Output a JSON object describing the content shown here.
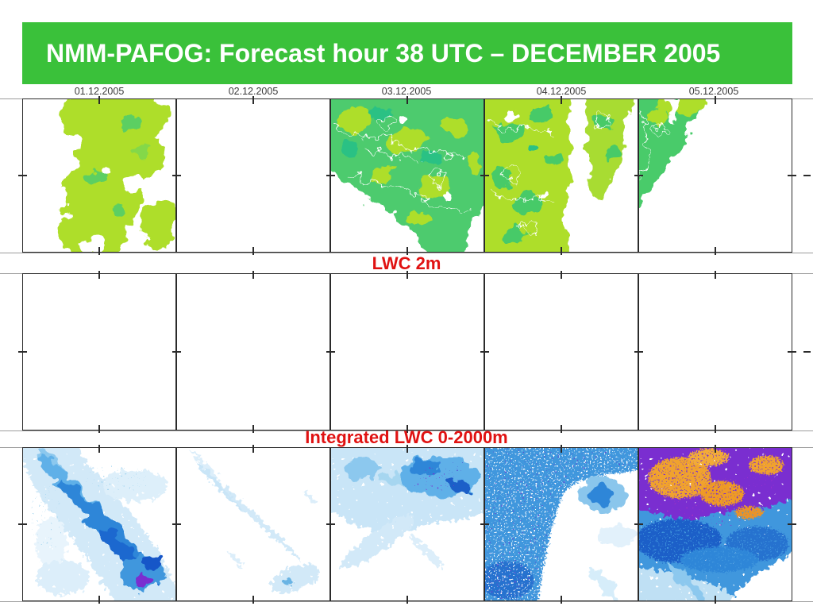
{
  "slide": {
    "title": "NMM-PAFOG: Forecast hour 38 UTC – DECEMBER 2005",
    "dates": [
      "01.12.2005",
      "02.12.2005",
      "03.12.2005",
      "04.12.2005",
      "05.12.2005"
    ],
    "rows": [
      {
        "name": "surface-fog-maps",
        "label": "",
        "panel_count": 5
      },
      {
        "name": "lwc-2m-maps",
        "label": "LWC 2m",
        "panel_count": 5
      },
      {
        "name": "integrated-lwc-maps",
        "label": "Integrated LWC 0-2000m",
        "panel_count": 5
      }
    ],
    "colors": {
      "banner_green": "#3ac13a",
      "label_red": "#e01212",
      "fog_yellow_green": "#aede2b",
      "fog_green": "#4ecb6e",
      "fog_deep_green": "#2cc184",
      "contour_white": "#ffffff",
      "lwc_pale_blue": "#cfe8f8",
      "lwc_mid_blue": "#5fb0e8",
      "lwc_blue": "#2e86d8",
      "lwc_deep_blue": "#1a5fc8",
      "lwc_purple": "#7a2fd0",
      "lwc_magenta": "#b133c1",
      "lwc_orange": "#f0a22e"
    }
  }
}
